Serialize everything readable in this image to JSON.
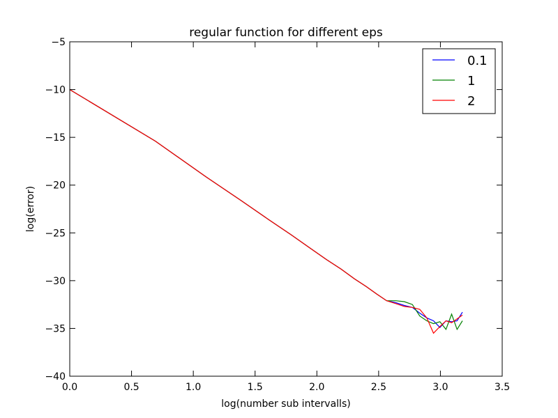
{
  "chart_data": {
    "type": "line",
    "title": "regular function for different eps",
    "xlabel": "log(number sub intervalls)",
    "ylabel": "log(error)",
    "xlim": [
      0.0,
      3.5
    ],
    "ylim": [
      -40,
      -5
    ],
    "xticks": [
      "0.0",
      "0.5",
      "1.0",
      "1.5",
      "2.0",
      "2.5",
      "3.0",
      "3.5"
    ],
    "yticks": [
      "−5",
      "−10",
      "−15",
      "−20",
      "−25",
      "−30",
      "−35",
      "−40"
    ],
    "grid": false,
    "legend_position": "top-right",
    "series": [
      {
        "name": "0.1",
        "color": "#0000ff",
        "x": [
          0.0,
          0.693,
          1.099,
          1.386,
          1.609,
          1.792,
          1.946,
          2.079,
          2.197,
          2.303,
          2.398,
          2.485,
          2.565,
          2.639,
          2.708,
          2.773,
          2.833,
          2.89,
          2.944,
          2.996,
          3.045,
          3.091,
          3.135,
          3.178
        ],
        "y": [
          -10.0,
          -15.4,
          -19.1,
          -21.6,
          -23.6,
          -25.2,
          -26.6,
          -27.8,
          -28.8,
          -29.8,
          -30.6,
          -31.4,
          -32.1,
          -32.3,
          -32.6,
          -32.8,
          -33.4,
          -33.9,
          -34.2,
          -34.9,
          -34.2,
          -34.3,
          -34.2,
          -33.3
        ]
      },
      {
        "name": "1",
        "color": "#008000",
        "x": [
          0.0,
          0.693,
          1.099,
          1.386,
          1.609,
          1.792,
          1.946,
          2.079,
          2.197,
          2.303,
          2.398,
          2.485,
          2.565,
          2.639,
          2.708,
          2.773,
          2.833,
          2.89,
          2.944,
          2.996,
          3.045,
          3.091,
          3.135,
          3.178
        ],
        "y": [
          -10.0,
          -15.4,
          -19.1,
          -21.6,
          -23.6,
          -25.2,
          -26.6,
          -27.8,
          -28.8,
          -29.8,
          -30.6,
          -31.4,
          -32.1,
          -32.1,
          -32.2,
          -32.5,
          -33.7,
          -34.2,
          -34.5,
          -34.3,
          -35.1,
          -33.5,
          -35.1,
          -34.2
        ]
      },
      {
        "name": "2",
        "color": "#ff0000",
        "x": [
          0.0,
          0.693,
          1.099,
          1.386,
          1.609,
          1.792,
          1.946,
          2.079,
          2.197,
          2.303,
          2.398,
          2.485,
          2.565,
          2.639,
          2.708,
          2.773,
          2.833,
          2.89,
          2.944,
          2.996,
          3.045,
          3.091,
          3.135,
          3.178
        ],
        "y": [
          -10.0,
          -15.4,
          -19.1,
          -21.6,
          -23.6,
          -25.2,
          -26.6,
          -27.8,
          -28.8,
          -29.8,
          -30.6,
          -31.4,
          -32.1,
          -32.4,
          -32.7,
          -32.8,
          -33.0,
          -33.9,
          -35.5,
          -34.8,
          -34.2,
          -34.4,
          -34.0,
          -33.6
        ]
      }
    ]
  }
}
